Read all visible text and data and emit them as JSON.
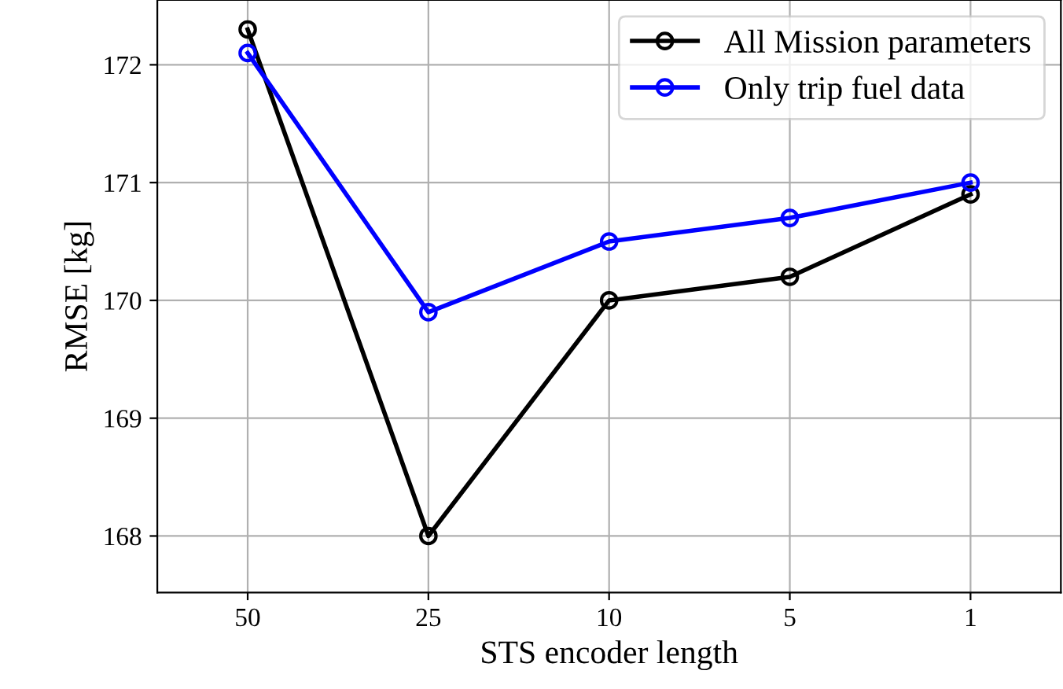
{
  "chart_data": {
    "type": "line",
    "xlabel": "STS encoder length",
    "ylabel": "RMSE [kg]",
    "categories": [
      "50",
      "25",
      "10",
      "5",
      "1"
    ],
    "series": [
      {
        "name": "All Mission parameters",
        "color": "#000000",
        "values": [
          172.3,
          168.0,
          170.0,
          170.2,
          170.9
        ]
      },
      {
        "name": "Only trip fuel data",
        "color": "#0000ff",
        "values": [
          172.1,
          169.9,
          170.5,
          170.7,
          171.0
        ]
      }
    ],
    "ylim": [
      167.52,
      172.55
    ],
    "yticks": [
      168,
      169,
      170,
      171,
      172
    ],
    "grid": true,
    "legend": "top right",
    "marker": "circle",
    "line_style": "solid"
  }
}
